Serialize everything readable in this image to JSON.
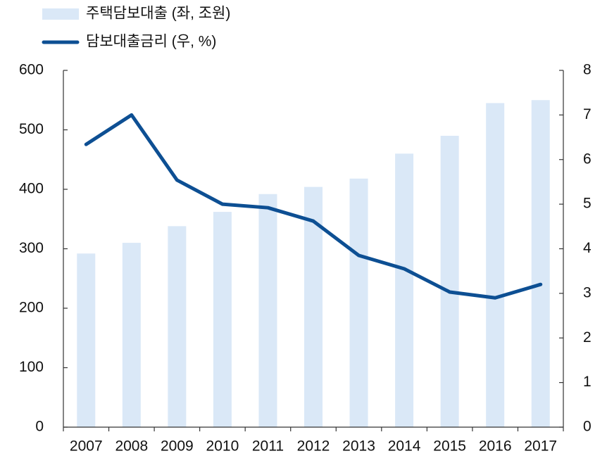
{
  "chart_data": {
    "type": "bar-line",
    "categories": [
      "2007",
      "2008",
      "2009",
      "2010",
      "2011",
      "2012",
      "2013",
      "2014",
      "2015",
      "2016",
      "2017"
    ],
    "series": [
      {
        "name": "주택담보대출 (좌, 조원)",
        "type": "bar",
        "color": "#dae8f7",
        "values": [
          292,
          310,
          338,
          362,
          392,
          404,
          418,
          460,
          490,
          545,
          550
        ]
      },
      {
        "name": "담보대출금리 (우, %)",
        "type": "line",
        "axis": "y2",
        "color": "#0d4f93",
        "values": [
          6.34,
          7.0,
          5.54,
          5.0,
          4.92,
          4.62,
          3.85,
          3.55,
          3.03,
          2.9,
          3.2
        ]
      }
    ],
    "ylim": [
      0,
      600
    ],
    "yticks": [
      0,
      100,
      200,
      300,
      400,
      500,
      600
    ],
    "y2lim": [
      0,
      8
    ],
    "y2ticks": [
      0,
      1,
      2,
      3,
      4,
      5,
      6,
      7,
      8
    ]
  }
}
